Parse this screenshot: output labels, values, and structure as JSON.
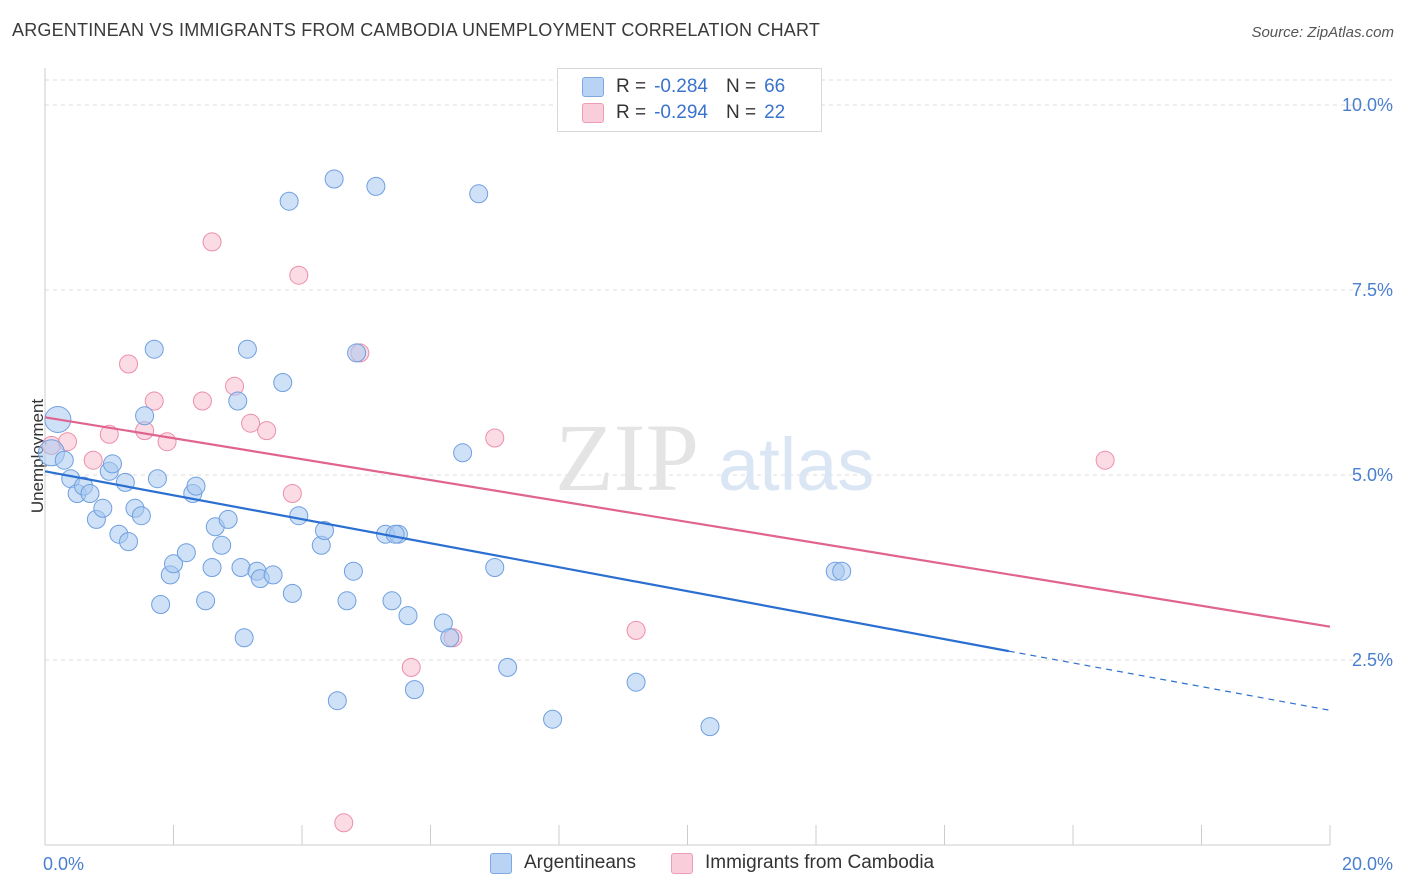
{
  "title": "ARGENTINEAN VS IMMIGRANTS FROM CAMBODIA UNEMPLOYMENT CORRELATION CHART",
  "source": "Source: ZipAtlas.com",
  "legend_top": {
    "rows": [
      {
        "r_label": "R =",
        "r_value": "-0.284",
        "n_label": "N =",
        "n_value": "66"
      },
      {
        "r_label": "R =",
        "r_value": "-0.294",
        "n_label": "N =",
        "n_value": "22"
      }
    ]
  },
  "legend_bottom": {
    "items": [
      "Argentineans",
      "Immigrants from Cambodia"
    ]
  },
  "colors": {
    "blue_fill": "#a8c8f0",
    "blue_stroke": "#6f9fe0",
    "blue_line": "#2b6fd1",
    "pink_fill": "#f7c0d0",
    "pink_stroke": "#ec8fab",
    "pink_line": "#e0648e",
    "tick_text": "#4a7fd0"
  },
  "chart_data": {
    "type": "scatter",
    "title": "ARGENTINEAN VS IMMIGRANTS FROM CAMBODIA UNEMPLOYMENT CORRELATION CHART",
    "xlabel": "",
    "ylabel": "Unemployment",
    "xlim": [
      0,
      20
    ],
    "ylim": [
      0,
      10.5
    ],
    "x_tick_labels": [
      "0.0%",
      "20.0%"
    ],
    "y_ticks": [
      2.5,
      5.0,
      7.5,
      10.0
    ],
    "y_tick_labels": [
      "2.5%",
      "5.0%",
      "7.5%",
      "10.0%"
    ],
    "grid": true,
    "legend_position": "top-center",
    "series": [
      {
        "name": "Argentineans",
        "r": -0.284,
        "n": 66,
        "trend": {
          "x0": 0,
          "y0": 5.05,
          "x1": 15.0,
          "y1": 2.62,
          "dashed_to_x": 20,
          "dashed_to_y": 1.82
        },
        "points": [
          [
            0.1,
            5.3
          ],
          [
            0.2,
            5.75
          ],
          [
            0.3,
            5.2
          ],
          [
            0.4,
            4.95
          ],
          [
            0.5,
            4.75
          ],
          [
            0.6,
            4.85
          ],
          [
            0.7,
            4.75
          ],
          [
            0.8,
            4.4
          ],
          [
            0.9,
            4.55
          ],
          [
            1.0,
            5.05
          ],
          [
            1.05,
            5.15
          ],
          [
            1.15,
            4.2
          ],
          [
            1.25,
            4.9
          ],
          [
            1.3,
            4.1
          ],
          [
            1.4,
            4.55
          ],
          [
            1.5,
            4.45
          ],
          [
            1.55,
            5.8
          ],
          [
            1.7,
            6.7
          ],
          [
            1.75,
            4.95
          ],
          [
            1.8,
            3.25
          ],
          [
            1.95,
            3.65
          ],
          [
            2.0,
            3.8
          ],
          [
            2.2,
            3.95
          ],
          [
            2.3,
            4.75
          ],
          [
            2.35,
            4.85
          ],
          [
            2.5,
            3.3
          ],
          [
            2.6,
            3.75
          ],
          [
            2.65,
            4.3
          ],
          [
            2.75,
            4.05
          ],
          [
            2.85,
            4.4
          ],
          [
            3.0,
            6.0
          ],
          [
            3.05,
            3.75
          ],
          [
            3.1,
            2.8
          ],
          [
            3.15,
            6.7
          ],
          [
            3.3,
            3.7
          ],
          [
            3.35,
            3.6
          ],
          [
            3.55,
            3.65
          ],
          [
            3.7,
            6.25
          ],
          [
            3.8,
            8.7
          ],
          [
            3.85,
            3.4
          ],
          [
            3.95,
            4.45
          ],
          [
            4.3,
            4.05
          ],
          [
            4.35,
            4.25
          ],
          [
            4.5,
            9.0
          ],
          [
            4.55,
            1.95
          ],
          [
            4.7,
            3.3
          ],
          [
            4.8,
            3.7
          ],
          [
            4.85,
            6.65
          ],
          [
            5.15,
            8.9
          ],
          [
            5.3,
            4.2
          ],
          [
            5.4,
            3.3
          ],
          [
            5.5,
            4.2
          ],
          [
            5.65,
            3.1
          ],
          [
            5.75,
            2.1
          ],
          [
            6.2,
            3.0
          ],
          [
            6.3,
            2.8
          ],
          [
            6.5,
            5.3
          ],
          [
            6.75,
            8.8
          ],
          [
            7.0,
            3.75
          ],
          [
            7.2,
            2.4
          ],
          [
            7.9,
            1.7
          ],
          [
            9.2,
            2.2
          ],
          [
            10.35,
            1.6
          ],
          [
            12.3,
            3.7
          ],
          [
            12.4,
            3.7
          ],
          [
            5.45,
            4.2
          ]
        ]
      },
      {
        "name": "Immigrants from Cambodia",
        "r": -0.294,
        "n": 22,
        "trend": {
          "x0": 0,
          "y0": 5.78,
          "x1": 20,
          "y1": 2.95
        },
        "points": [
          [
            0.1,
            5.4
          ],
          [
            0.35,
            5.45
          ],
          [
            0.75,
            5.2
          ],
          [
            1.0,
            5.55
          ],
          [
            1.3,
            6.5
          ],
          [
            1.55,
            5.6
          ],
          [
            1.7,
            6.0
          ],
          [
            1.9,
            5.45
          ],
          [
            2.45,
            6.0
          ],
          [
            2.6,
            8.15
          ],
          [
            2.95,
            6.2
          ],
          [
            3.2,
            5.7
          ],
          [
            3.45,
            5.6
          ],
          [
            3.85,
            4.75
          ],
          [
            3.95,
            7.7
          ],
          [
            4.9,
            6.65
          ],
          [
            4.65,
            0.3
          ],
          [
            5.7,
            2.4
          ],
          [
            6.35,
            2.8
          ],
          [
            7.0,
            5.5
          ],
          [
            9.2,
            2.9
          ],
          [
            16.5,
            5.2
          ]
        ]
      }
    ]
  }
}
